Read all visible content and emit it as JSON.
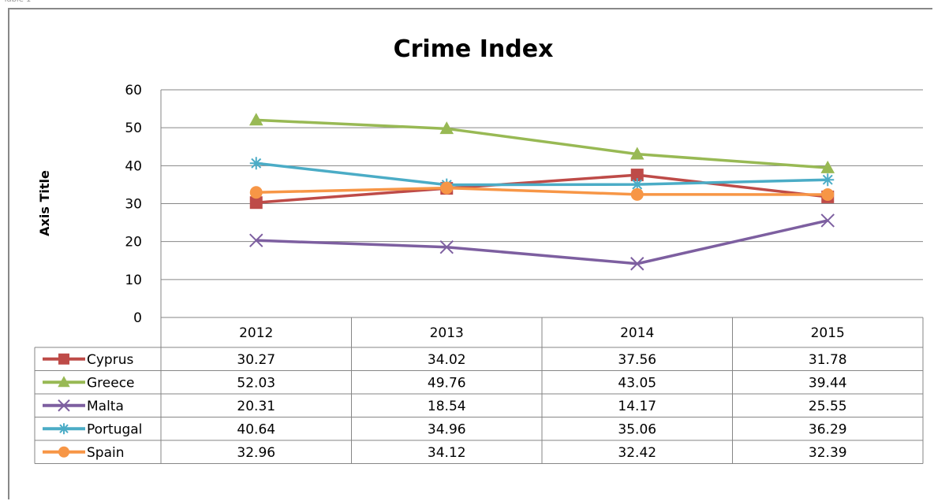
{
  "chart_data": {
    "type": "line",
    "title": "Crime Index",
    "ylabel": "Axis Title",
    "xlabel": "",
    "categories": [
      "2012",
      "2013",
      "2014",
      "2015"
    ],
    "ylim": [
      0,
      60
    ],
    "yticks": [
      0,
      10,
      20,
      30,
      40,
      50,
      60
    ],
    "grid": true,
    "legend": "data-table",
    "series": [
      {
        "name": "Cyprus",
        "values": [
          30.27,
          34.02,
          37.56,
          31.78
        ],
        "color": "#BE4B48",
        "marker": "square"
      },
      {
        "name": "Greece",
        "values": [
          52.03,
          49.76,
          43.05,
          39.44
        ],
        "color": "#98B954",
        "marker": "triangle"
      },
      {
        "name": "Malta",
        "values": [
          20.31,
          18.54,
          14.17,
          25.55
        ],
        "color": "#7D5FA0",
        "marker": "x"
      },
      {
        "name": "Portugal",
        "values": [
          40.64,
          34.96,
          35.06,
          36.29
        ],
        "color": "#4BACC6",
        "marker": "star"
      },
      {
        "name": "Spain",
        "values": [
          32.96,
          34.12,
          32.42,
          32.39
        ],
        "color": "#F79646",
        "marker": "circle"
      }
    ]
  }
}
